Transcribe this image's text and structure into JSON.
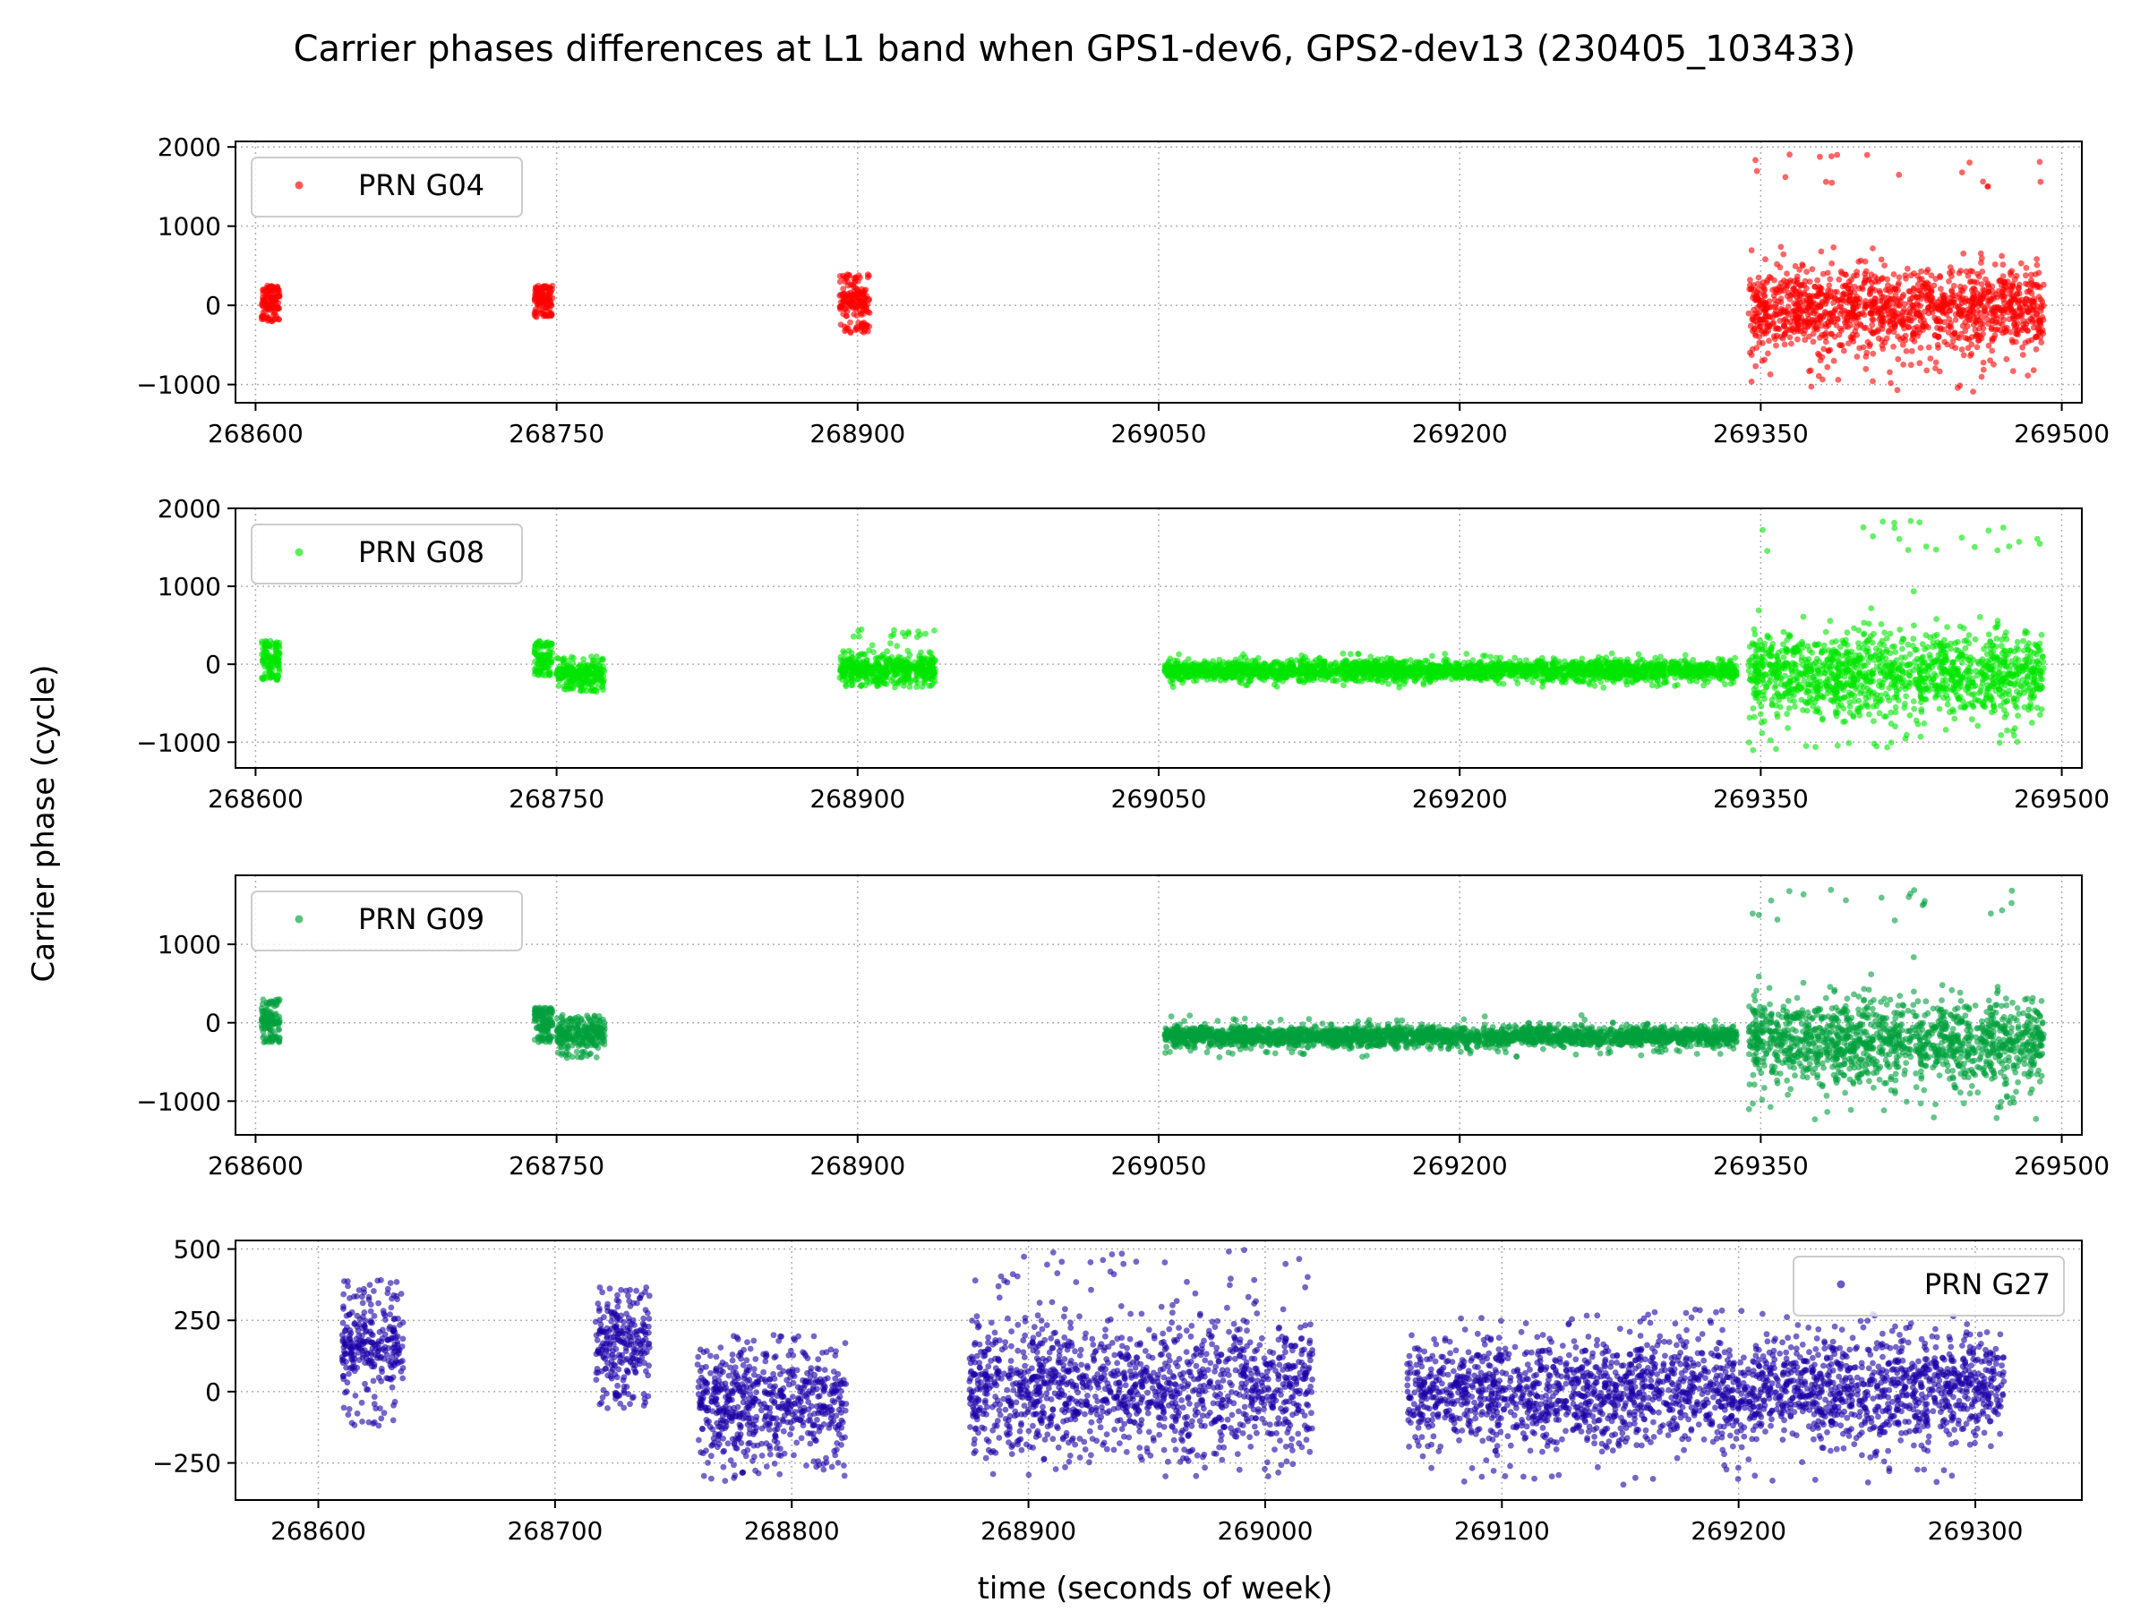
{
  "figure": {
    "title": "Carrier phases differences at L1 band when GPS1-dev6, GPS2-dev13 (230405_103433)",
    "ylabel": "Carrier phase (cycle)",
    "xlabel": "time (seconds of week)"
  },
  "chart_data": [
    {
      "type": "scatter",
      "legend": "PRN G04",
      "legend_position": "upper left",
      "color": "#ff0000",
      "grid": true,
      "xlim": [
        268590,
        269510
      ],
      "ylim": [
        -1230,
        2070
      ],
      "xticks": [
        268600,
        268750,
        268900,
        269050,
        269200,
        269350,
        269500
      ],
      "xtick_labels": [
        "268600",
        "268750",
        "268900",
        "269050",
        "269200",
        "269350",
        "269500"
      ],
      "yticks": [
        -1000,
        0,
        1000,
        2000
      ],
      "ytick_labels": [
        "−1000",
        "0",
        "1000",
        "2000"
      ],
      "series": [
        {
          "name": "PRN G04",
          "x_start": 268603,
          "x_end": 268612,
          "center": 60,
          "spread": 90,
          "range": [
            -200,
            250
          ]
        },
        {
          "name": "PRN G04",
          "x_start": 268739,
          "x_end": 268748,
          "center": 50,
          "spread": 90,
          "range": [
            -150,
            250
          ]
        },
        {
          "name": "PRN G04",
          "x_start": 268891,
          "x_end": 268906,
          "center": 0,
          "spread": 110,
          "range": [
            -350,
            400
          ]
        },
        {
          "name": "PRN G04",
          "x_start": 269344,
          "x_end": 269491,
          "center": -50,
          "spread": 250,
          "range": [
            -1100,
            1950
          ]
        }
      ]
    },
    {
      "type": "scatter",
      "legend": "PRN G08",
      "legend_position": "upper left",
      "color": "#00e600",
      "grid": true,
      "xlim": [
        268590,
        269510
      ],
      "ylim": [
        -1330,
        2000
      ],
      "xticks": [
        268600,
        268750,
        268900,
        269050,
        269200,
        269350,
        269500
      ],
      "xtick_labels": [
        "268600",
        "268750",
        "268900",
        "269050",
        "269200",
        "269350",
        "269500"
      ],
      "yticks": [
        -1000,
        0,
        1000,
        2000
      ],
      "ytick_labels": [
        "−1000",
        "0",
        "1000",
        "2000"
      ],
      "series": [
        {
          "name": "PRN G08",
          "x_start": 268603,
          "x_end": 268612,
          "center": 50,
          "spread": 90,
          "range": [
            -200,
            300
          ]
        },
        {
          "name": "PRN G08",
          "x_start": 268739,
          "x_end": 268748,
          "center": 60,
          "spread": 90,
          "range": [
            -150,
            300
          ]
        },
        {
          "name": "PRN G08",
          "x_start": 268750,
          "x_end": 268774,
          "center": -120,
          "spread": 70,
          "range": [
            -350,
            100
          ]
        },
        {
          "name": "PRN G08",
          "x_start": 268891,
          "x_end": 268939,
          "center": -60,
          "spread": 90,
          "range": [
            -300,
            450
          ]
        },
        {
          "name": "PRN G08",
          "x_start": 269053,
          "x_end": 269338,
          "center": -80,
          "spread": 60,
          "range": [
            -300,
            150
          ]
        },
        {
          "name": "PRN G08",
          "x_start": 269344,
          "x_end": 269491,
          "center": -150,
          "spread": 250,
          "range": [
            -1150,
            1850
          ]
        }
      ]
    },
    {
      "type": "scatter",
      "legend": "PRN G09",
      "legend_position": "upper left",
      "color": "#00a03c",
      "grid": true,
      "xlim": [
        268590,
        269510
      ],
      "ylim": [
        -1430,
        1880
      ],
      "xticks": [
        268600,
        268750,
        268900,
        269050,
        269200,
        269350,
        269500
      ],
      "xtick_labels": [
        "268600",
        "268750",
        "268900",
        "269050",
        "269200",
        "269350",
        "269500"
      ],
      "yticks": [
        -1000,
        0,
        1000
      ],
      "ytick_labels": [
        "−1000",
        "0",
        "1000"
      ],
      "series": [
        {
          "name": "PRN G09",
          "x_start": 268603,
          "x_end": 268612,
          "center": 20,
          "spread": 90,
          "range": [
            -250,
            300
          ]
        },
        {
          "name": "PRN G09",
          "x_start": 268739,
          "x_end": 268748,
          "center": -20,
          "spread": 90,
          "range": [
            -250,
            200
          ]
        },
        {
          "name": "PRN G09",
          "x_start": 268750,
          "x_end": 268774,
          "center": -150,
          "spread": 80,
          "range": [
            -450,
            100
          ]
        },
        {
          "name": "PRN G09",
          "x_start": 269053,
          "x_end": 269338,
          "center": -180,
          "spread": 60,
          "range": [
            -450,
            100
          ]
        },
        {
          "name": "PRN G09",
          "x_start": 269344,
          "x_end": 269491,
          "center": -250,
          "spread": 250,
          "range": [
            -1250,
            1750
          ]
        }
      ]
    },
    {
      "type": "scatter",
      "legend": "PRN G27",
      "legend_position": "upper right",
      "color": "#1a00a6",
      "grid": true,
      "xlim": [
        268565,
        269345
      ],
      "ylim": [
        -380,
        530
      ],
      "xticks": [
        268600,
        268700,
        268800,
        268900,
        269000,
        269100,
        269200,
        269300
      ],
      "xtick_labels": [
        "268600",
        "268700",
        "268800",
        "268900",
        "269000",
        "269100",
        "269200",
        "269300"
      ],
      "yticks": [
        -250,
        0,
        250,
        500
      ],
      "ytick_labels": [
        "−250",
        "0",
        "250",
        "500"
      ],
      "series": [
        {
          "name": "PRN G27",
          "x_start": 268610,
          "x_end": 268636,
          "center": 150,
          "spread": 70,
          "range": [
            -120,
            400
          ]
        },
        {
          "name": "PRN G27",
          "x_start": 268717,
          "x_end": 268740,
          "center": 180,
          "spread": 70,
          "range": [
            -60,
            370
          ]
        },
        {
          "name": "PRN G27",
          "x_start": 268760,
          "x_end": 268823,
          "center": -30,
          "spread": 90,
          "range": [
            -320,
            200
          ]
        },
        {
          "name": "PRN G27",
          "x_start": 268875,
          "x_end": 269020,
          "center": 20,
          "spread": 110,
          "range": [
            -300,
            500
          ]
        },
        {
          "name": "PRN G27",
          "x_start": 269060,
          "x_end": 269312,
          "center": 0,
          "spread": 90,
          "range": [
            -330,
            290
          ]
        }
      ]
    }
  ]
}
